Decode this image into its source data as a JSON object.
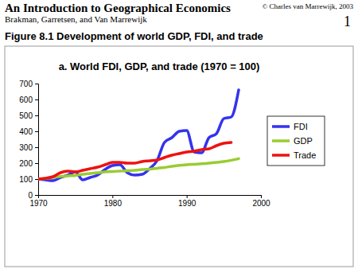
{
  "header": {
    "book_title": "An Introduction to Geographical Economics",
    "authors": "Brakman, Garretsen, and Van Marrewijk",
    "copyright": "© Charles van Marrewijk, 2003",
    "page": "1",
    "figure_title": "Figure 8.1 Development of world GDP, FDI, and trade"
  },
  "chart_data": {
    "type": "line",
    "title": "a. World FDI, GDP, and trade (1970 = 100)",
    "x": [
      1970,
      1971,
      1972,
      1973,
      1974,
      1975,
      1976,
      1977,
      1978,
      1979,
      1980,
      1981,
      1982,
      1983,
      1984,
      1985,
      1986,
      1987,
      1988,
      1989,
      1990,
      1991,
      1992,
      1993,
      1994,
      1995,
      1996,
      1997
    ],
    "series": [
      {
        "name": "FDI",
        "color": "#3333ee",
        "values": [
          100,
          95,
          90,
          110,
          125,
          145,
          95,
          110,
          125,
          160,
          185,
          190,
          140,
          125,
          130,
          165,
          215,
          330,
          360,
          400,
          405,
          270,
          265,
          360,
          385,
          480,
          490,
          660
        ]
      },
      {
        "name": "GDP",
        "color": "#99cc33",
        "values": [
          100,
          104,
          110,
          116,
          120,
          123,
          130,
          135,
          140,
          145,
          148,
          150,
          152,
          155,
          160,
          163,
          168,
          173,
          180,
          186,
          190,
          193,
          196,
          200,
          205,
          210,
          218,
          228
        ]
      },
      {
        "name": "Trade",
        "color": "#ee1111",
        "values": [
          100,
          105,
          115,
          140,
          150,
          145,
          155,
          165,
          175,
          190,
          205,
          205,
          200,
          200,
          210,
          215,
          220,
          235,
          250,
          260,
          270,
          275,
          285,
          290,
          310,
          325,
          330,
          null
        ]
      }
    ],
    "xlim": [
      1970,
      2000
    ],
    "xticks": [
      1970,
      1980,
      1990,
      2000
    ],
    "ylim": [
      0,
      700
    ],
    "yticks": [
      0,
      100,
      200,
      300,
      400,
      500,
      600,
      700
    ],
    "grid": false,
    "legend": "right"
  }
}
